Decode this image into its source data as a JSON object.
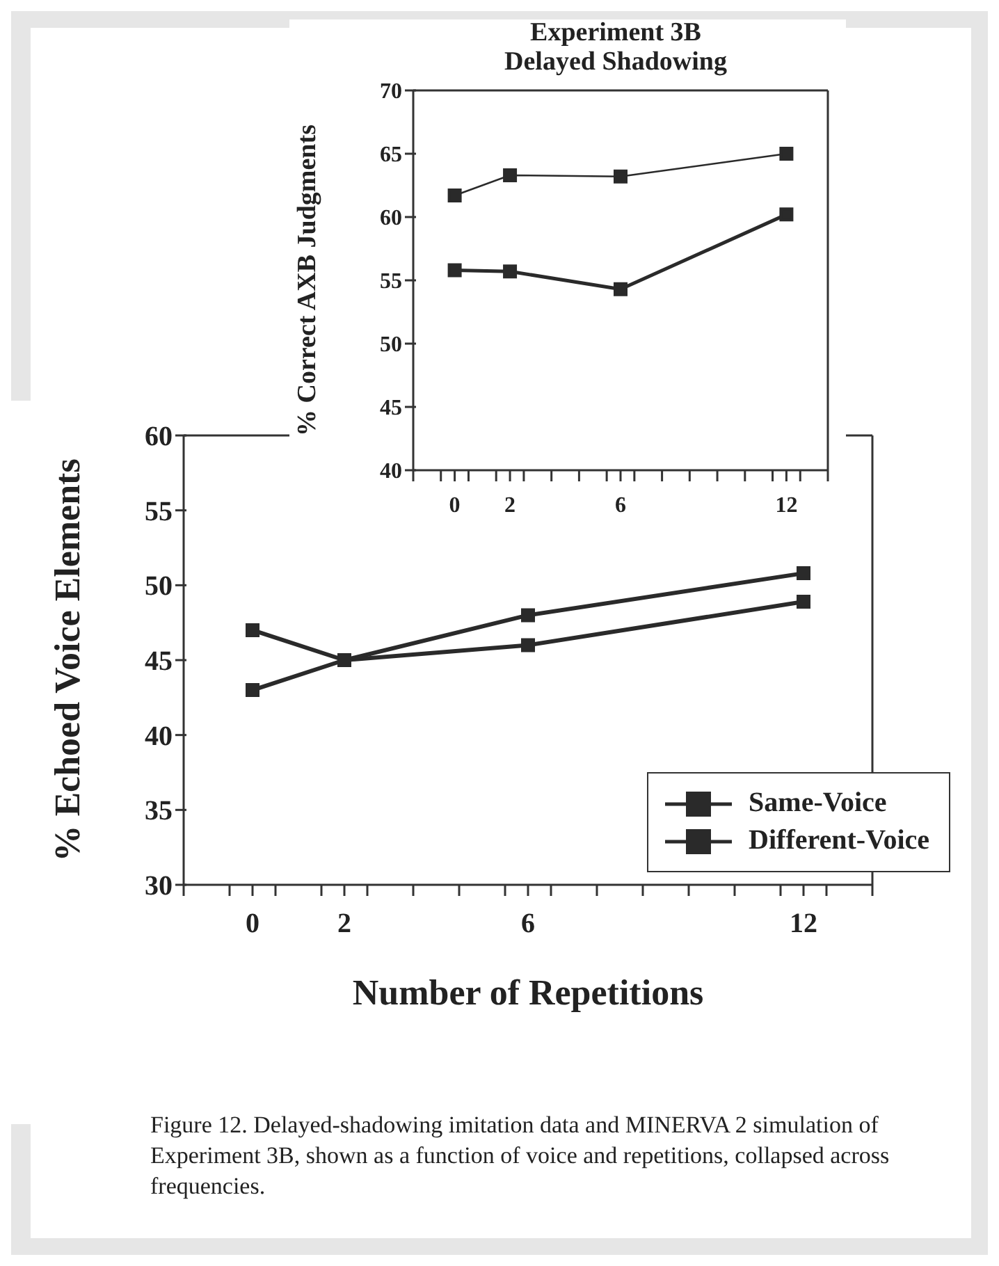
{
  "chart_data": [
    {
      "type": "line",
      "xlabel": "Number of Repetitions",
      "ylabel": "% Echoed Voice Elements",
      "x": [
        0,
        2,
        6,
        12
      ],
      "series": [
        {
          "name": "Same-Voice",
          "color": "#2a2a2a",
          "values": [
            47,
            45,
            48,
            50.8
          ]
        },
        {
          "name": "Different-Voice",
          "color": "#2a2a2a",
          "values": [
            43,
            45,
            46,
            48.9
          ]
        }
      ],
      "xlim": [
        -1.5,
        13.5
      ],
      "xticks": [
        {
          "value": -1.5,
          "label": null
        },
        {
          "value": -0.5,
          "label": null
        },
        0,
        {
          "value": 0.5,
          "label": null
        },
        {
          "value": 1.5,
          "label": null
        },
        2,
        {
          "value": 2.5,
          "label": null
        },
        {
          "value": 3.5,
          "label": null
        },
        {
          "value": 4.5,
          "label": null
        },
        {
          "value": 5.5,
          "label": null
        },
        6,
        {
          "value": 6.5,
          "label": null
        },
        {
          "value": 7.5,
          "label": null
        },
        {
          "value": 8.5,
          "label": null
        },
        {
          "value": 9.5,
          "label": null
        },
        {
          "value": 10.5,
          "label": null
        },
        {
          "value": 11.5,
          "label": null
        },
        12,
        {
          "value": 12.5,
          "label": null
        },
        {
          "value": 13.5,
          "label": null
        }
      ],
      "ylim": [
        30,
        60
      ],
      "yticks": [
        30,
        35,
        40,
        45,
        50,
        55,
        60
      ],
      "marker": "square",
      "legend": "right",
      "annotations": [
        "Figure 12.    Delayed-shadowing imitation data and MINERVA 2 simulation of Experiment 3B, shown as a function of voice and repetitions, collapsed across frequencies."
      ]
    },
    {
      "type": "line",
      "title": "Experiment 3B\nDelayed Shadowing",
      "ylabel": "% Correct AXB Judgments",
      "x": [
        0,
        2,
        6,
        12
      ],
      "series": [
        {
          "color": "#2a2a2a",
          "values": [
            61.7,
            63.3,
            63.2,
            65.0
          ]
        },
        {
          "color": "#2a2a2a",
          "values": [
            55.8,
            55.7,
            54.3,
            60.2
          ]
        }
      ],
      "xlim": [
        -1.5,
        13.5
      ],
      "xticks": [
        {
          "value": -1.5,
          "label": null
        },
        {
          "value": -0.5,
          "label": null
        },
        0,
        {
          "value": 0.5,
          "label": null
        },
        {
          "value": 1.5,
          "label": null
        },
        2,
        {
          "value": 2.5,
          "label": null
        },
        {
          "value": 3.5,
          "label": null
        },
        {
          "value": 4.5,
          "label": null
        },
        {
          "value": 5.5,
          "label": null
        },
        6,
        {
          "value": 6.5,
          "label": null
        },
        {
          "value": 7.5,
          "label": null
        },
        {
          "value": 8.5,
          "label": null
        },
        {
          "value": 9.5,
          "label": null
        },
        {
          "value": 10.5,
          "label": null
        },
        {
          "value": 11.5,
          "label": null
        },
        12,
        {
          "value": 12.5,
          "label": null
        },
        {
          "value": 13.5,
          "label": null
        }
      ],
      "ylim": [
        40,
        70
      ],
      "yticks": [
        40,
        45,
        50,
        55,
        60,
        65,
        70
      ],
      "marker": "square"
    }
  ]
}
